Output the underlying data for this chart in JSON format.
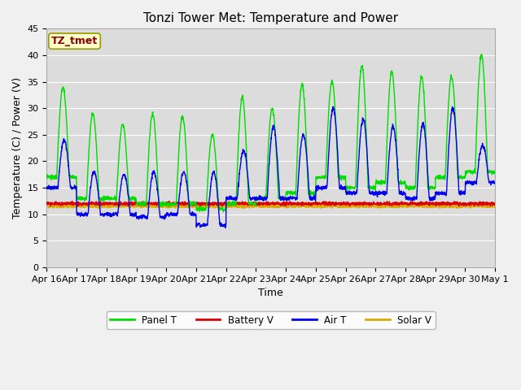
{
  "title": "Tonzi Tower Met: Temperature and Power",
  "xlabel": "Time",
  "ylabel": "Temperature (C) / Power (V)",
  "annotation": "TZ_tmet",
  "ylim": [
    0,
    45
  ],
  "yticks": [
    0,
    5,
    10,
    15,
    20,
    25,
    30,
    35,
    40,
    45
  ],
  "xtick_labels": [
    "Apr 16",
    "Apr 17",
    "Apr 18",
    "Apr 19",
    "Apr 20",
    "Apr 21",
    "Apr 22",
    "Apr 23",
    "Apr 24",
    "Apr 25",
    "Apr 26",
    "Apr 27",
    "Apr 28",
    "Apr 29",
    "Apr 30",
    "May 1"
  ],
  "legend": [
    "Panel T",
    "Battery V",
    "Air T",
    "Solar V"
  ],
  "line_colors": [
    "#00dd00",
    "#dd0000",
    "#0000ee",
    "#ddaa00"
  ],
  "title_fontsize": 11,
  "axis_fontsize": 9,
  "tick_fontsize": 8,
  "figsize": [
    6.4,
    4.8
  ],
  "dpi": 100
}
